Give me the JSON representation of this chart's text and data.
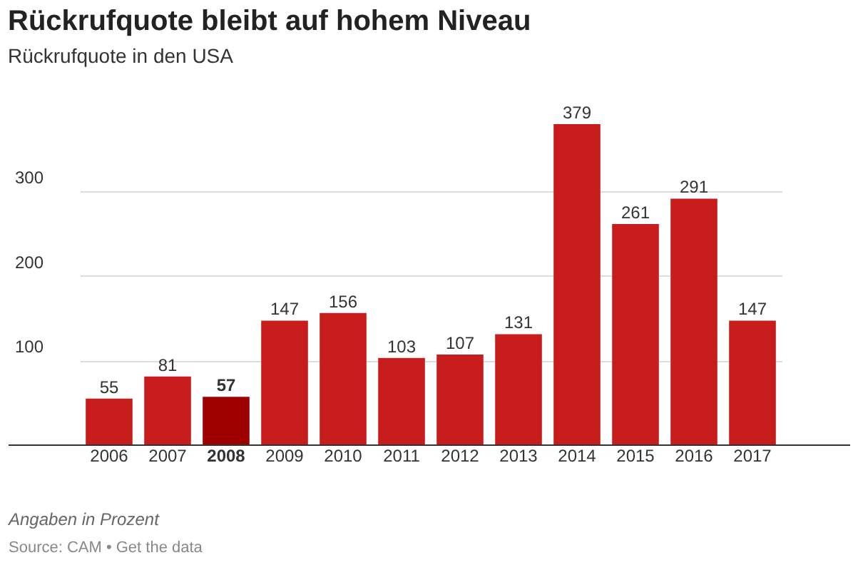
{
  "chart_data": {
    "type": "bar",
    "title": "Rückrufquote bleibt auf hohem Niveau",
    "subtitle": "Rückrufquote in den USA",
    "categories": [
      "2006",
      "2007",
      "2008",
      "2009",
      "2010",
      "2011",
      "2012",
      "2013",
      "2014",
      "2015",
      "2016",
      "2017"
    ],
    "values": [
      55,
      81,
      57,
      147,
      156,
      103,
      107,
      131,
      379,
      261,
      291,
      147
    ],
    "colors": [
      "#c71e1d",
      "#c71e1d",
      "#9e0000",
      "#c71e1d",
      "#c71e1d",
      "#c71e1d",
      "#c71e1d",
      "#c71e1d",
      "#c71e1d",
      "#c71e1d",
      "#c71e1d",
      "#c71e1d"
    ],
    "ylim": [
      0,
      379
    ],
    "yticks": [
      100,
      200,
      300
    ],
    "grid": "y",
    "data_labels": true,
    "annotations": [
      "Angaben in Prozent",
      "Source: CAM • Get the data"
    ]
  }
}
